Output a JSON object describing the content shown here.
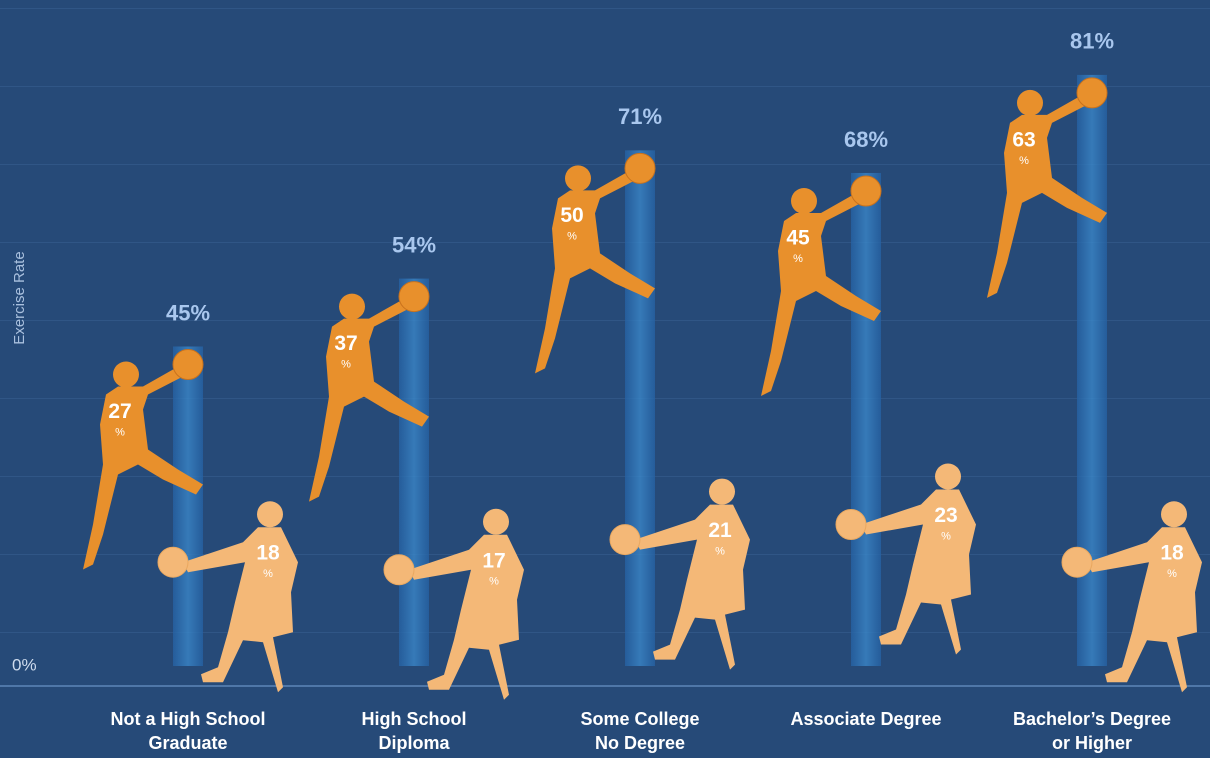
{
  "chart_data": {
    "type": "stacked-figures",
    "y_label": "Exercise Rate",
    "categories": [
      [
        "Not a High School",
        "Graduate"
      ],
      [
        "High School",
        "Diploma"
      ],
      [
        "Some College",
        "No Degree"
      ],
      [
        "Associate Degree"
      ],
      [
        "Bachelor’s Degree",
        "or Higher"
      ]
    ],
    "series": [
      {
        "color": "#f4b877",
        "values": [
          18,
          17,
          21,
          23,
          18
        ]
      },
      {
        "color": "#e8902c",
        "values": [
          27,
          37,
          50,
          45,
          63
        ]
      }
    ],
    "unit_label": "%",
    "totals": {
      "color": "#2c6fb3",
      "values": [
        45,
        54,
        71,
        68,
        81
      ],
      "value_labels": [
        "45%",
        "54%",
        "71%",
        "68%",
        "81%"
      ]
    },
    "ylim": [
      0,
      90
    ],
    "yticks": [
      {
        "value": 0,
        "label": "0%"
      }
    ],
    "background": "#264a78"
  }
}
